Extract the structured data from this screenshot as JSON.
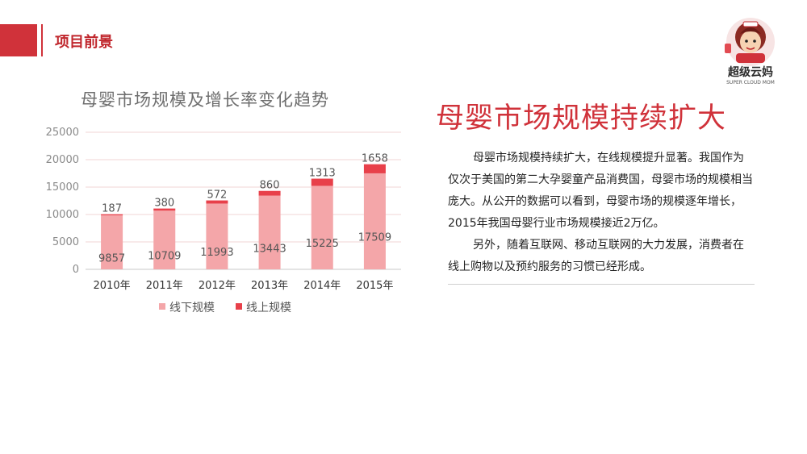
{
  "header": {
    "title": "项目前景"
  },
  "logo": {
    "text": "超级云妈",
    "sub": "SUPER CLOUD MOM"
  },
  "headline": "母婴市场规模持续扩大",
  "paragraphs": [
    "母婴市场规模持续扩大，在线规模提升显著。我国作为仅次于美国的第二大孕婴童产品消费国，母婴市场的规模相当庞大。从公开的数据可以看到，母婴市场的规模逐年增长，2015年我国母婴行业市场规模接近2万亿。",
    "另外，随着互联网、移动互联网的大力发展，消费者在线上购物以及预约服务的习惯已经形成。"
  ],
  "chart_data": {
    "type": "bar",
    "stacked": true,
    "title": "母婴市场规模及增长率变化趋势",
    "categories": [
      "2010年",
      "2011年",
      "2012年",
      "2013年",
      "2014年",
      "2015年"
    ],
    "series": [
      {
        "name": "线下规模",
        "values": [
          9857,
          10709,
          11993,
          13443,
          15225,
          17509
        ],
        "color": "#f4a6a9"
      },
      {
        "name": "线上规模",
        "values": [
          187,
          380,
          572,
          860,
          1313,
          1658
        ],
        "color": "#e8404a"
      }
    ],
    "ylim": [
      0,
      25000
    ],
    "yticks": [
      0,
      5000,
      10000,
      15000,
      20000,
      25000
    ],
    "grid": true,
    "legend": "bottom"
  }
}
